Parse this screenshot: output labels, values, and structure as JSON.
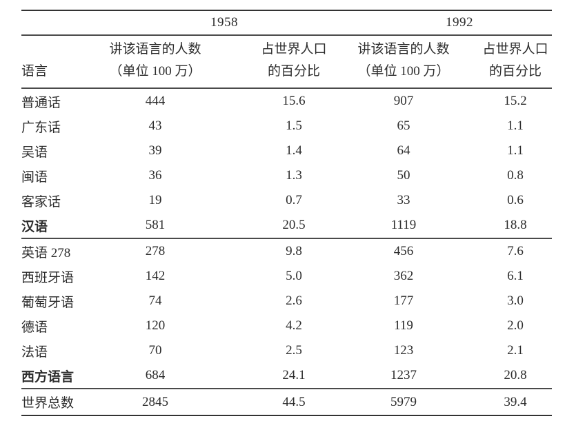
{
  "table": {
    "year_groups": [
      "1958",
      "1992"
    ],
    "columns": [
      {
        "line1": "",
        "line2": "语言"
      },
      {
        "line1": "讲该语言的人数",
        "line2": "（单位 100 万）"
      },
      {
        "line1": "占世界人口",
        "line2": "的百分比"
      },
      {
        "line1": "讲该语言的人数",
        "line2": "（单位 100 万）"
      },
      {
        "line1": "占世界人口",
        "line2": "的百分比"
      }
    ],
    "rows": [
      {
        "label": "普通话",
        "values": [
          "444",
          "15.6",
          "907",
          "15.2"
        ]
      },
      {
        "label": "广东话",
        "values": [
          "43",
          "1.5",
          "65",
          "1.1"
        ]
      },
      {
        "label": "吴语",
        "values": [
          "39",
          "1.4",
          "64",
          "1.1"
        ]
      },
      {
        "label": "闽语",
        "values": [
          "36",
          "1.3",
          "50",
          "0.8"
        ]
      },
      {
        "label": "客家话",
        "values": [
          "19",
          "0.7",
          "33",
          "0.6"
        ]
      },
      {
        "label": "汉语",
        "values": [
          "581",
          "20.5",
          "1119",
          "18.8"
        ]
      },
      {
        "label": "英语 278",
        "values": [
          "278",
          "9.8",
          "456",
          "7.6"
        ]
      },
      {
        "label": "西班牙语",
        "values": [
          "142",
          "5.0",
          "362",
          "6.1"
        ]
      },
      {
        "label": "葡萄牙语",
        "values": [
          "74",
          "2.6",
          "177",
          "3.0"
        ]
      },
      {
        "label": "德语",
        "values": [
          "120",
          "4.2",
          "119",
          "2.0"
        ]
      },
      {
        "label": "法语",
        "values": [
          "70",
          "2.5",
          "123",
          "2.1"
        ]
      },
      {
        "label": "西方语言",
        "values": [
          "684",
          "24.1",
          "1237",
          "20.8"
        ]
      },
      {
        "label": "世界总数",
        "values": [
          "2845",
          "44.5",
          "5979",
          "39.4"
        ]
      }
    ]
  }
}
